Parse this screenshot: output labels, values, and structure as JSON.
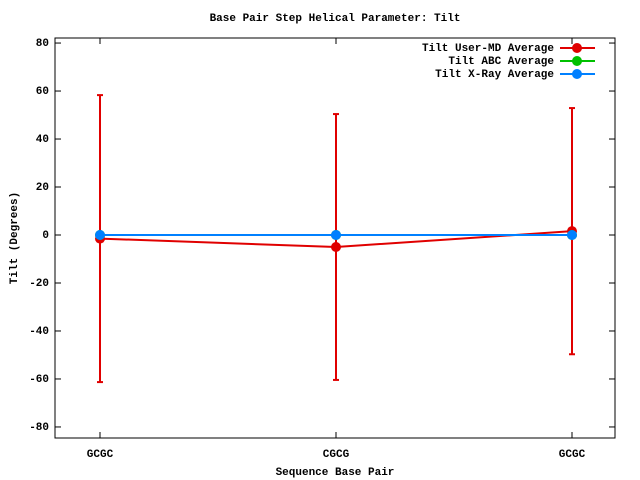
{
  "chart_data": {
    "type": "line",
    "title": "Base Pair Step Helical Parameter: Tilt",
    "x_label": "Sequence Base Pair",
    "y_label": "Tilt (Degrees)",
    "categories": [
      "GCGC",
      "CGCG",
      "GCGC"
    ],
    "series": [
      {
        "name": "Tilt User-MD Average",
        "color": "#e00000",
        "values": [
          -1.5,
          -5,
          1.6
        ],
        "errors": [
          59.8,
          55.4,
          51.3
        ]
      },
      {
        "name": "Tilt ABC Average",
        "color": "#00c000",
        "values": [
          0,
          0,
          0
        ]
      },
      {
        "name": "Tilt X-Ray Average",
        "color": "#0080ff",
        "values": [
          0,
          0,
          0
        ]
      }
    ],
    "ylim": [
      -84.6,
      82.1
    ],
    "yticks": [
      -80,
      -60,
      -40,
      -20,
      0,
      20,
      40,
      60,
      80
    ],
    "legend": "top right"
  }
}
